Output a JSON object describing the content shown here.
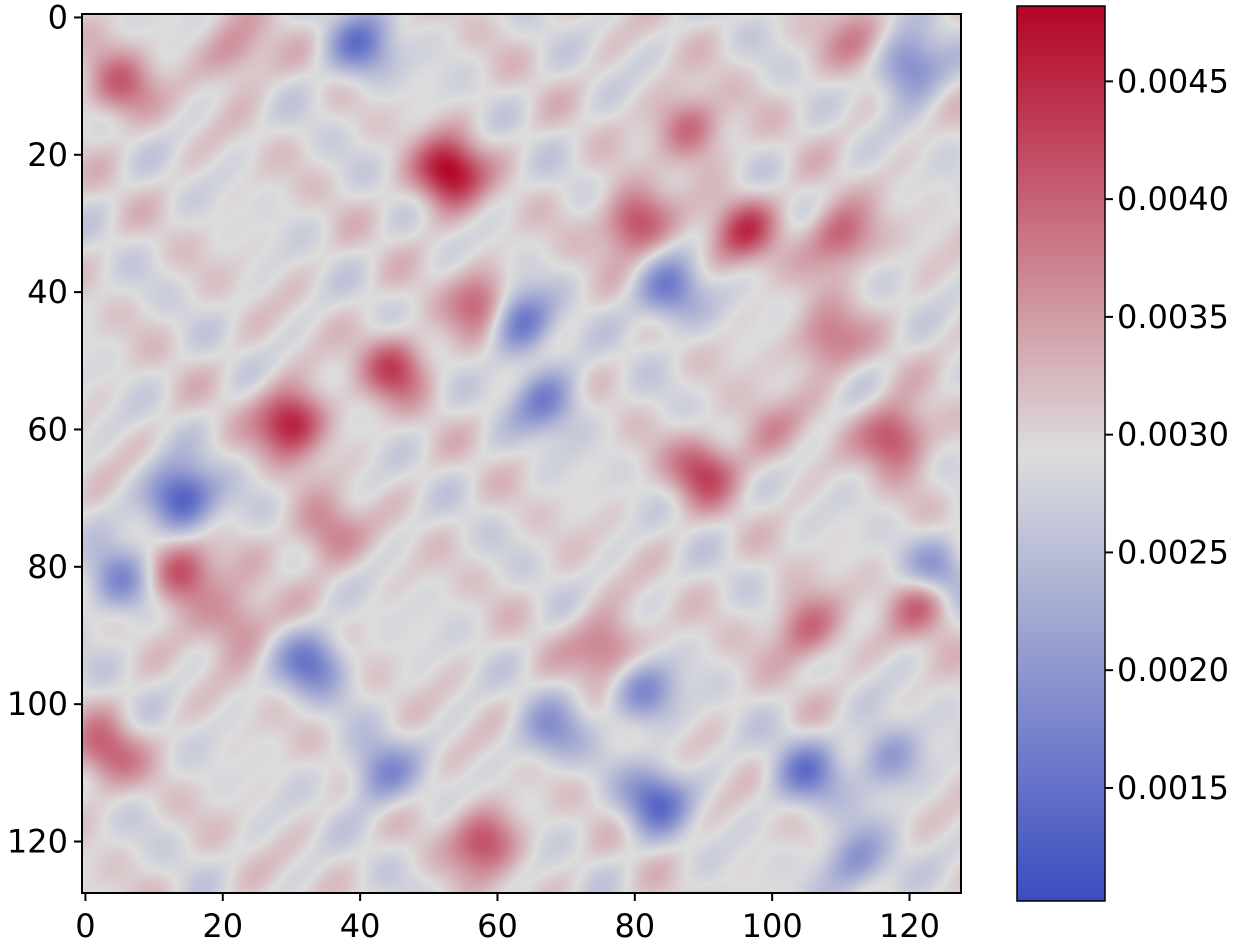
{
  "chart_data": {
    "type": "heatmap",
    "title": "",
    "xlabel": "",
    "ylabel": "",
    "grid_size": 128,
    "colormap": "coolwarm",
    "colors": {
      "low": "#3b4cc0",
      "mid": "#dddddd",
      "high": "#b40426"
    },
    "x_ticks": [
      0,
      20,
      40,
      60,
      80,
      100,
      120
    ],
    "y_ticks": [
      0,
      20,
      40,
      60,
      80,
      100,
      120
    ],
    "x_tick_labels": [
      "0",
      "20",
      "40",
      "60",
      "80",
      "100",
      "120"
    ],
    "y_tick_labels": [
      "0",
      "20",
      "40",
      "60",
      "80",
      "100",
      "120"
    ],
    "xlim": [
      -0.5,
      127.5
    ],
    "ylim": [
      127.5,
      -0.5
    ],
    "colorbar": {
      "vmin": 0.00102,
      "vmax": 0.00482,
      "ticks": [
        0.0015,
        0.002,
        0.0025,
        0.003,
        0.0035,
        0.004,
        0.0045
      ],
      "tick_labels": [
        "0.0015",
        "0.0020",
        "0.0025",
        "0.0030",
        "0.0035",
        "0.0040",
        "0.0045"
      ]
    },
    "features": [
      {
        "x": 30,
        "y": 59,
        "value": 0.0047
      },
      {
        "x": 14,
        "y": 70,
        "value": 0.0011
      },
      {
        "x": 63,
        "y": 44,
        "value": 0.0014
      },
      {
        "x": 14,
        "y": 81,
        "value": 0.0043
      },
      {
        "x": 80,
        "y": 30,
        "value": 0.0043
      },
      {
        "x": 96,
        "y": 31,
        "value": 0.0042
      },
      {
        "x": 118,
        "y": 61,
        "value": 0.0043
      },
      {
        "x": 83,
        "y": 114,
        "value": 0.0015
      },
      {
        "x": 45,
        "y": 51,
        "value": 0.0042
      },
      {
        "x": 58,
        "y": 42,
        "value": 0.0042
      },
      {
        "x": 90,
        "y": 66,
        "value": 0.0042
      },
      {
        "x": 122,
        "y": 85,
        "value": 0.0041
      },
      {
        "x": 58,
        "y": 120,
        "value": 0.0042
      },
      {
        "x": 5,
        "y": 10,
        "value": 0.004
      },
      {
        "x": 110,
        "y": 32,
        "value": 0.0041
      },
      {
        "x": 88,
        "y": 16,
        "value": 0.004
      },
      {
        "x": 53,
        "y": 22,
        "value": 0.004
      },
      {
        "x": 22,
        "y": 88,
        "value": 0.0038
      },
      {
        "x": 3,
        "y": 107,
        "value": 0.004
      },
      {
        "x": 76,
        "y": 92,
        "value": 0.004
      },
      {
        "x": 105,
        "y": 89,
        "value": 0.004
      },
      {
        "x": 120,
        "y": 7,
        "value": 0.0016
      },
      {
        "x": 40,
        "y": 4,
        "value": 0.0017
      },
      {
        "x": 5,
        "y": 82,
        "value": 0.0018
      },
      {
        "x": 85,
        "y": 40,
        "value": 0.0017
      },
      {
        "x": 33,
        "y": 94,
        "value": 0.0017
      },
      {
        "x": 81,
        "y": 98,
        "value": 0.0018
      },
      {
        "x": 53,
        "y": 23,
        "value": 0.0039
      },
      {
        "x": 105,
        "y": 110,
        "value": 0.0018
      },
      {
        "x": 124,
        "y": 81,
        "value": 0.0018
      },
      {
        "x": 112,
        "y": 123,
        "value": 0.0019
      },
      {
        "x": 67,
        "y": 56,
        "value": 0.0018
      },
      {
        "x": 43,
        "y": 110,
        "value": 0.0019
      },
      {
        "x": 22,
        "y": 5,
        "value": 0.0037
      },
      {
        "x": 112,
        "y": 4,
        "value": 0.0037
      },
      {
        "x": 68,
        "y": 104,
        "value": 0.0021
      },
      {
        "x": 117,
        "y": 108,
        "value": 0.002
      },
      {
        "x": 100,
        "y": 60,
        "value": 0.0035
      },
      {
        "x": 108,
        "y": 47,
        "value": 0.0039
      },
      {
        "x": 35,
        "y": 75,
        "value": 0.0038
      }
    ]
  }
}
